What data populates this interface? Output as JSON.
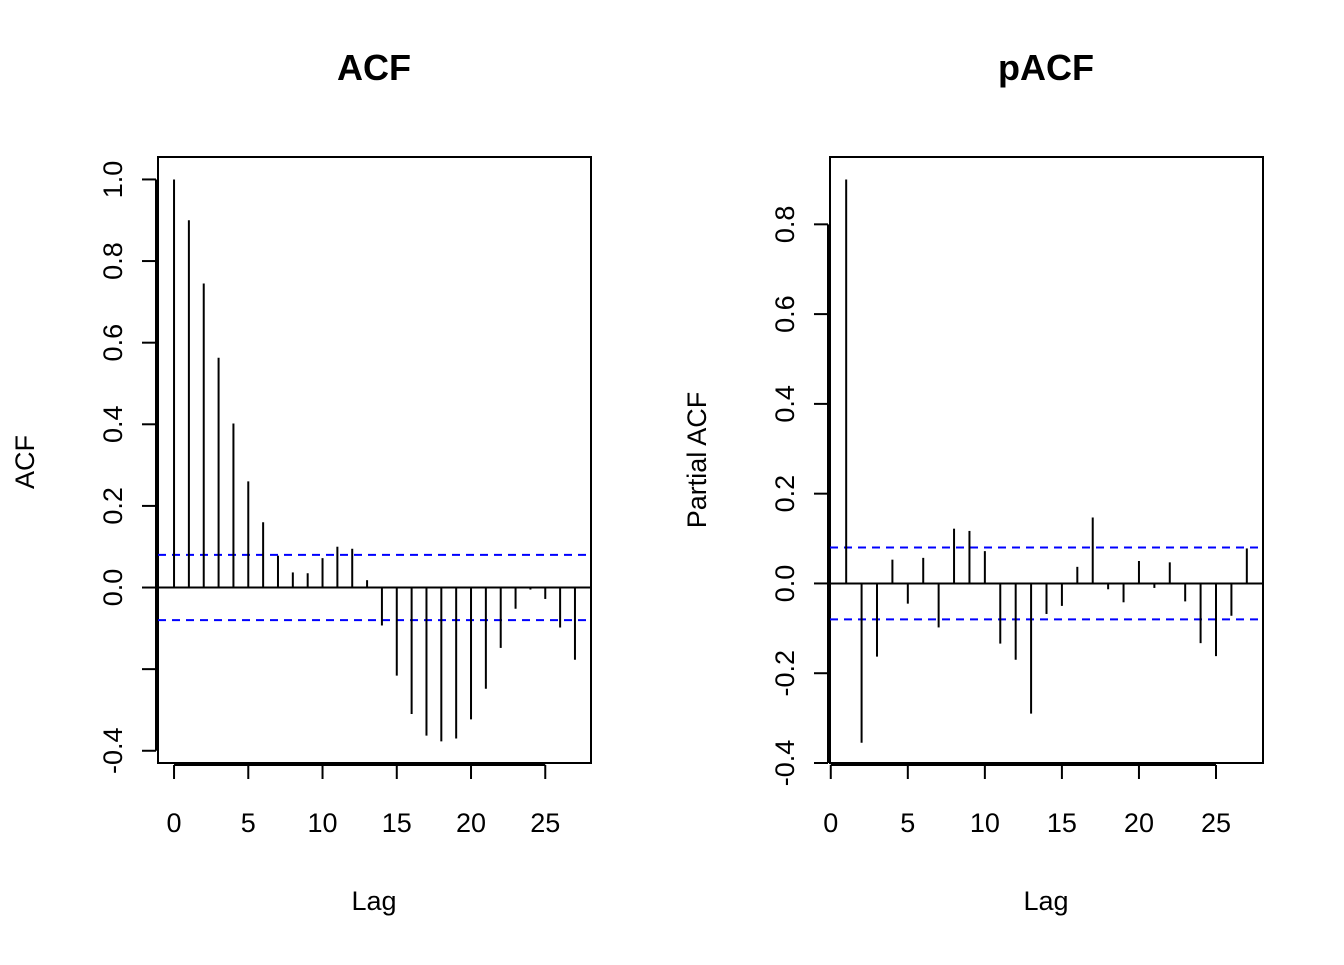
{
  "colors": {
    "bar": "#000000",
    "confidence": "#0000ff",
    "frame": "#000000",
    "background": "#ffffff"
  },
  "chart_data": [
    {
      "type": "bar",
      "title": "ACF",
      "xlabel": "Lag",
      "ylabel": "ACF",
      "xlim": [
        -1.08,
        28.08
      ],
      "ylim": [
        -0.43,
        1.055
      ],
      "xticks": [
        0,
        5,
        10,
        15,
        20,
        25
      ],
      "yticks": [
        -0.4,
        -0.2,
        0.0,
        0.2,
        0.4,
        0.6,
        0.8,
        1.0
      ],
      "ytick_labels": [
        "-0.4",
        "",
        "0.0",
        "0.2",
        "0.4",
        "0.6",
        "0.8",
        "1.0"
      ],
      "grid": false,
      "confidence_band": [
        -0.08,
        0.08
      ],
      "lags": [
        0,
        1,
        2,
        3,
        4,
        5,
        6,
        7,
        8,
        9,
        10,
        11,
        12,
        13,
        14,
        15,
        16,
        17,
        18,
        19,
        20,
        21,
        22,
        23,
        24,
        25,
        26,
        27
      ],
      "values": [
        1.0,
        0.9,
        0.745,
        0.563,
        0.402,
        0.26,
        0.16,
        0.078,
        0.037,
        0.035,
        0.072,
        0.1,
        0.095,
        0.018,
        -0.093,
        -0.216,
        -0.31,
        -0.363,
        -0.377,
        -0.37,
        -0.323,
        -0.248,
        -0.148,
        -0.052,
        -0.005,
        -0.028,
        -0.098,
        -0.177
      ]
    },
    {
      "type": "bar",
      "title": "pACF",
      "xlabel": "Lag",
      "ylabel": "Partial ACF",
      "xlim": [
        -0.05,
        28.05
      ],
      "ylim": [
        -0.4,
        0.95
      ],
      "xticks": [
        0,
        5,
        10,
        15,
        20,
        25
      ],
      "yticks": [
        -0.4,
        -0.2,
        0.0,
        0.2,
        0.4,
        0.6,
        0.8
      ],
      "ytick_labels": [
        "-0.4",
        "-0.2",
        "0.0",
        "0.2",
        "0.4",
        "0.6",
        "0.8"
      ],
      "grid": false,
      "confidence_band": [
        -0.08,
        0.08
      ],
      "lags": [
        1,
        2,
        3,
        4,
        5,
        6,
        7,
        8,
        9,
        10,
        11,
        12,
        13,
        14,
        15,
        16,
        17,
        18,
        19,
        20,
        21,
        22,
        23,
        24,
        25,
        26,
        27
      ],
      "values": [
        0.9,
        -0.355,
        -0.163,
        0.053,
        -0.045,
        0.057,
        -0.098,
        0.122,
        0.117,
        0.072,
        -0.134,
        -0.17,
        -0.29,
        -0.068,
        -0.05,
        0.037,
        0.147,
        -0.013,
        -0.042,
        0.05,
        -0.01,
        0.047,
        -0.04,
        -0.133,
        -0.162,
        -0.072,
        0.078
      ]
    }
  ]
}
